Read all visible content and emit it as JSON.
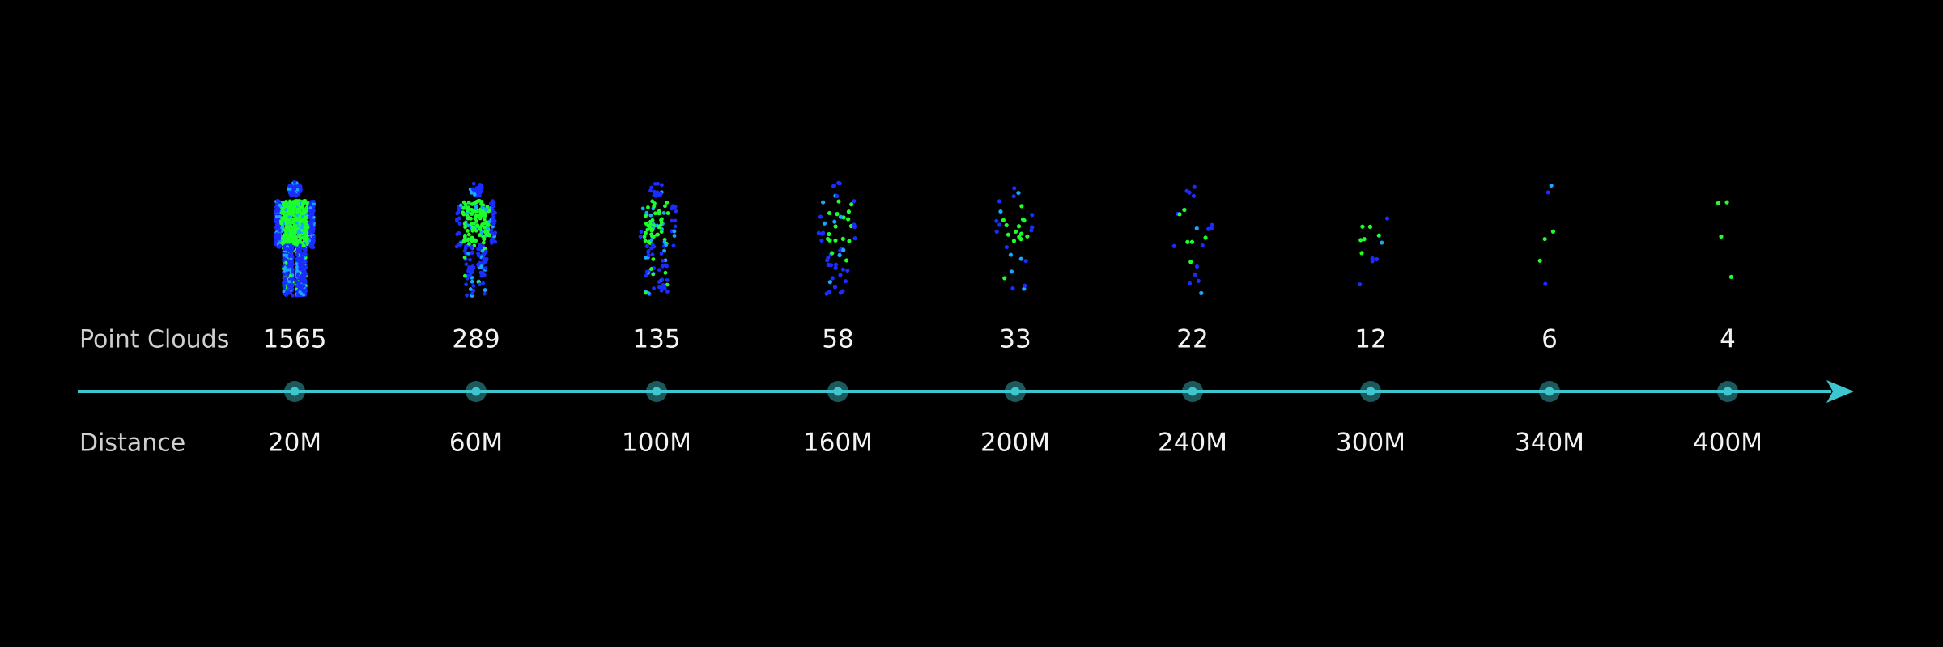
{
  "labels": {
    "point_clouds": "Point Clouds",
    "distance": "Distance"
  },
  "items": [
    {
      "count": 1565,
      "distance": "20M"
    },
    {
      "count": 289,
      "distance": "60M"
    },
    {
      "count": 135,
      "distance": "100M"
    },
    {
      "count": 58,
      "distance": "160M"
    },
    {
      "count": 33,
      "distance": "200M"
    },
    {
      "count": 22,
      "distance": "240M"
    },
    {
      "count": 12,
      "distance": "300M"
    },
    {
      "count": 6,
      "distance": "340M"
    },
    {
      "count": 4,
      "distance": "400M"
    }
  ]
}
